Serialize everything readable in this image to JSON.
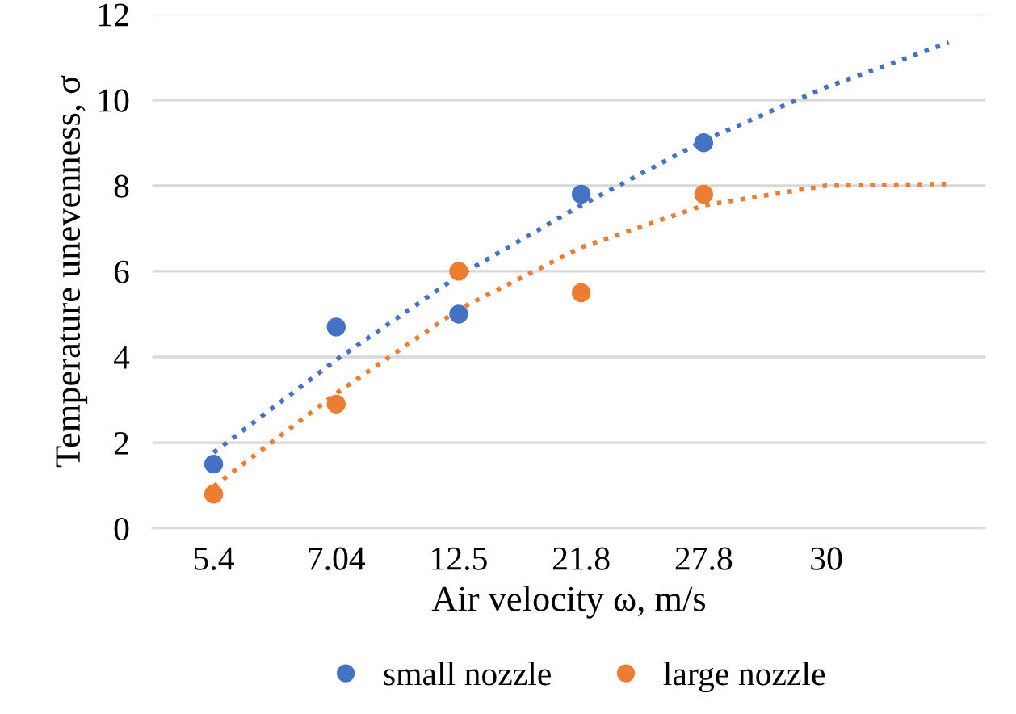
{
  "chart_data": {
    "type": "scatter",
    "xlabel": "Air velocity ω, m/s",
    "ylabel": "Temperature unevenness, σ",
    "categories": [
      "5.4",
      "7.04",
      "12.5",
      "21.8",
      "27.8",
      "30",
      null
    ],
    "series": [
      {
        "name": "small nozzle",
        "color": "#4472c4",
        "values": [
          1.5,
          4.7,
          5.0,
          7.8,
          9.0,
          null,
          null
        ],
        "marker": "circle"
      },
      {
        "name": "large nozzle",
        "color": "#ed7d31",
        "values": [
          0.8,
          2.9,
          6.0,
          5.5,
          7.8,
          null,
          null
        ],
        "marker": "circle"
      },
      {
        "type": "line",
        "color": "#4472c4",
        "line_style": "dotted",
        "values": [
          1.77,
          3.93,
          5.9,
          7.54,
          9.05,
          10.3,
          11.34
        ]
      },
      {
        "type": "line",
        "color": "#ed7d31",
        "line_style": "dotted",
        "values": [
          0.98,
          3.15,
          5.11,
          6.56,
          7.54,
          8.0,
          8.04
        ]
      }
    ],
    "ylim": [
      0,
      12
    ],
    "yticks": [
      0,
      2,
      4,
      6,
      8,
      10,
      12
    ],
    "grid": "y",
    "legend": "bottom"
  }
}
